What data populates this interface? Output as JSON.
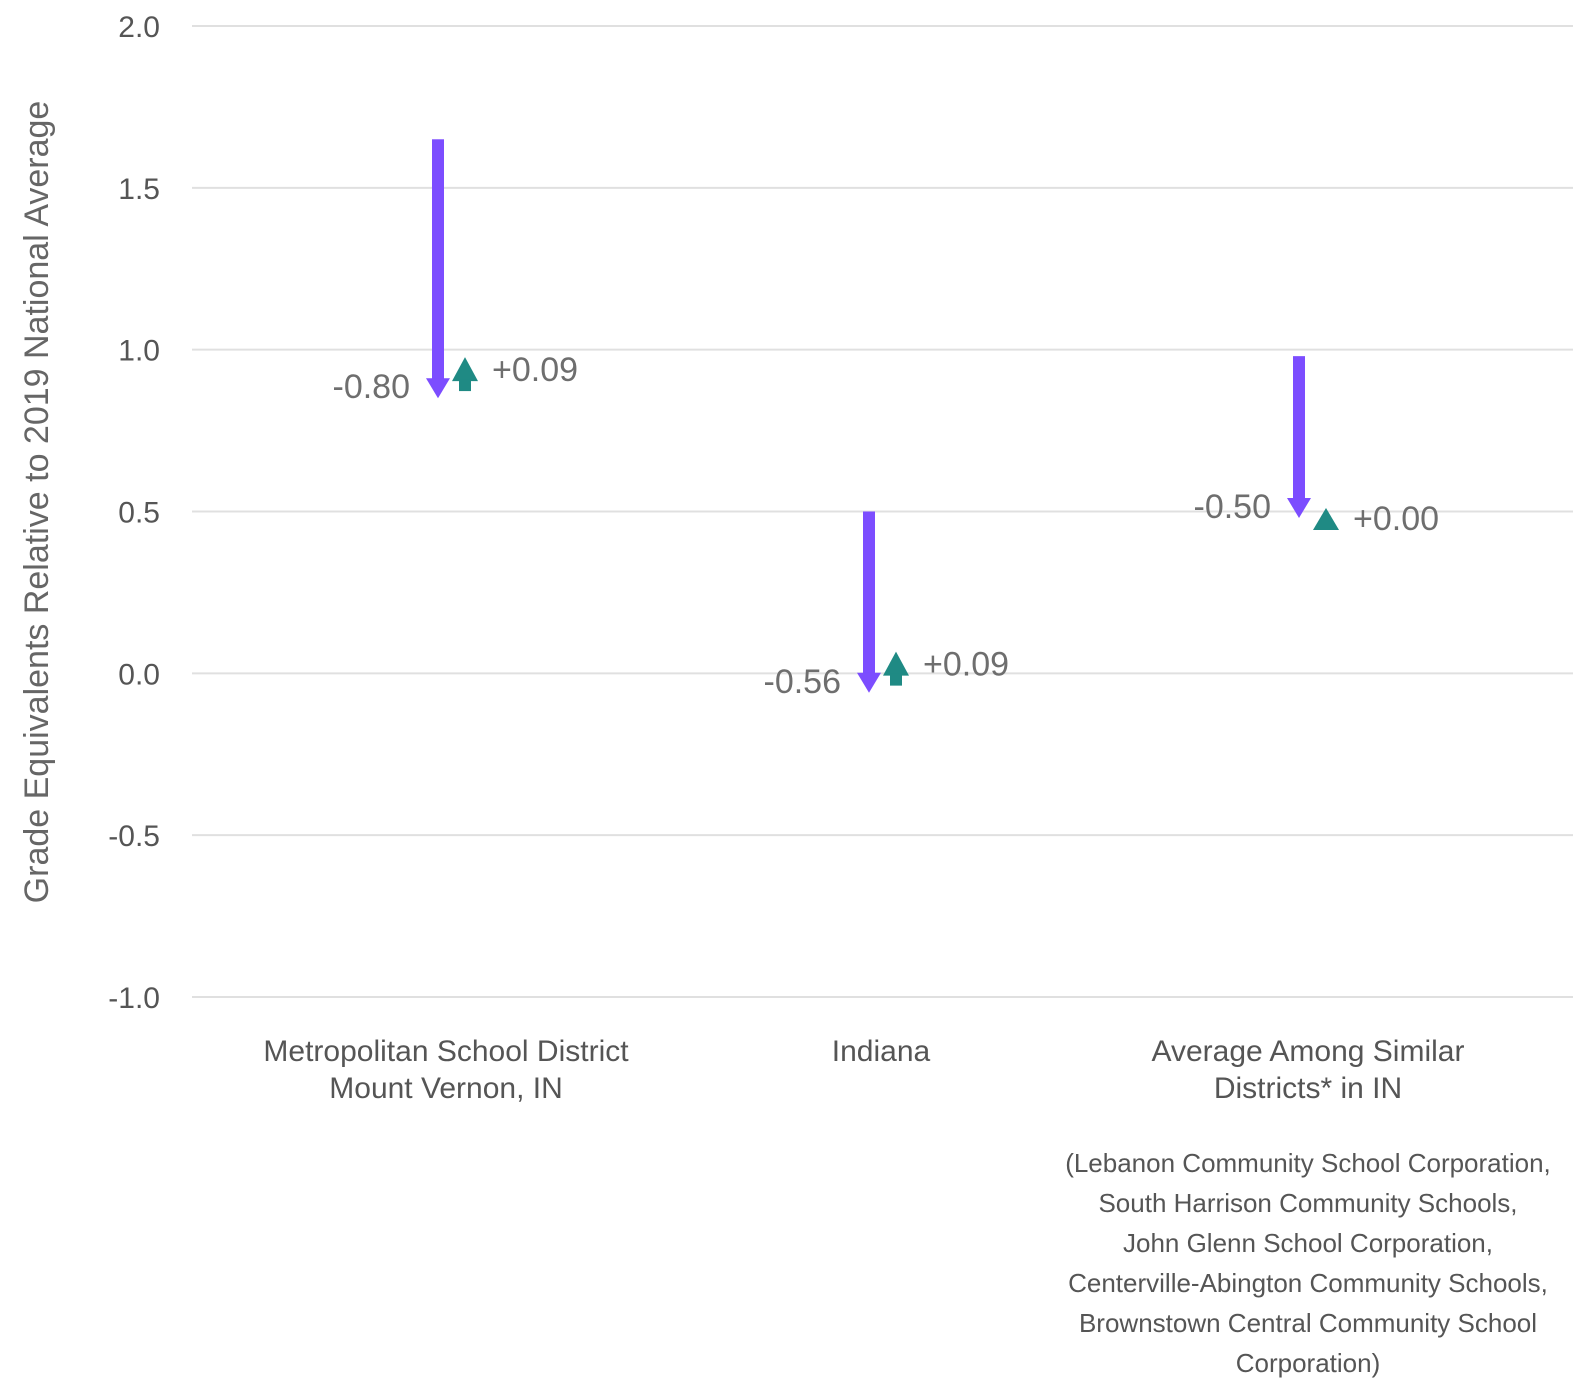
{
  "chart_data": {
    "type": "arrow-change",
    "ylabel": "Grade Equivalents Relative to 2019 National Average",
    "ylim": [
      -1.0,
      2.0
    ],
    "yticks": [
      2.0,
      1.5,
      1.0,
      0.5,
      0.0,
      -0.5,
      -1.0
    ],
    "ytick_labels": [
      "2.0",
      "1.5",
      "1.0",
      "0.5",
      "0.0",
      "-0.5",
      "-1.0"
    ],
    "grid": true,
    "colors": {
      "decline": "#7c4dff",
      "recovery": "#1f8a84",
      "grid": "#e0e0e0",
      "text": "#555555"
    },
    "categories": [
      {
        "label_lines": [
          "Metropolitan School District",
          "Mount Vernon, IN"
        ],
        "start": 1.65,
        "after_decline": 0.85,
        "decline": -0.8,
        "decline_label": "-0.80",
        "after_recovery": 0.94,
        "recovery": 0.09,
        "recovery_label": "+0.09",
        "note_lines": []
      },
      {
        "label_lines": [
          "Indiana"
        ],
        "start": 0.5,
        "after_decline": -0.06,
        "decline": -0.56,
        "decline_label": "-0.56",
        "after_recovery": 0.03,
        "recovery": 0.09,
        "recovery_label": "+0.09",
        "note_lines": []
      },
      {
        "label_lines": [
          "Average Among Similar",
          "Districts* in IN"
        ],
        "start": 0.98,
        "after_decline": 0.48,
        "decline": -0.5,
        "decline_label": "-0.50",
        "after_recovery": 0.48,
        "recovery": 0.0,
        "recovery_label": "+0.00",
        "note_lines": [
          "(Lebanon Community School Corporation,",
          "South Harrison Community Schools,",
          "John Glenn School Corporation,",
          "Centerville-Abington Community Schools,",
          "Brownstown Central Community School",
          "Corporation)"
        ]
      }
    ]
  }
}
